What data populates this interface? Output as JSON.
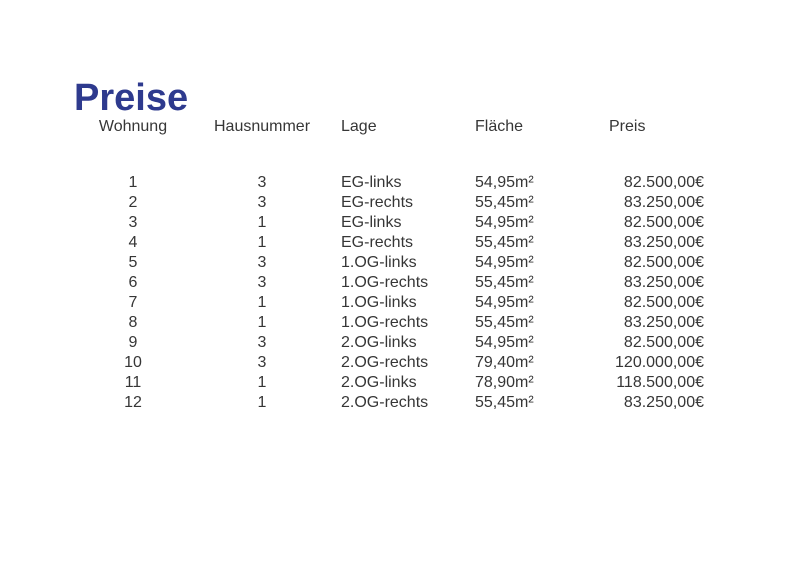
{
  "page": {
    "background": "#ffffff",
    "text_color": "#363636"
  },
  "title": {
    "text": "Preise",
    "color": "#2e3a8e"
  },
  "table": {
    "headers": [
      "Wohnung",
      "Hausnummer",
      "Lage",
      "Fläche",
      "Preis"
    ],
    "rows": [
      [
        "1",
        "3",
        "EG-links",
        "54,95m²",
        "82.500,00€"
      ],
      [
        "2",
        "3",
        "EG-rechts",
        "55,45m²",
        "83.250,00€"
      ],
      [
        "3",
        "1",
        "EG-links",
        "54,95m²",
        "82.500,00€"
      ],
      [
        "4",
        "1",
        "EG-rechts",
        "55,45m²",
        "83.250,00€"
      ],
      [
        "5",
        "3",
        "1.OG-links",
        "54,95m²",
        "82.500,00€"
      ],
      [
        "6",
        "3",
        "1.OG-rechts",
        "55,45m²",
        "83.250,00€"
      ],
      [
        "7",
        "1",
        "1.OG-links",
        "54,95m²",
        "82.500,00€"
      ],
      [
        "8",
        "1",
        "1.OG-rechts",
        "55,45m²",
        "83.250,00€"
      ],
      [
        "9",
        "3",
        "2.OG-links",
        "54,95m²",
        "82.500,00€"
      ],
      [
        "10",
        "3",
        "2.OG-rechts",
        "79,40m²",
        "120.000,00€"
      ],
      [
        "11",
        "1",
        "2.OG-links",
        "78,90m²",
        "118.500,00€"
      ],
      [
        "12",
        "1",
        "2.OG-rechts",
        "55,45m²",
        "83.250,00€"
      ]
    ]
  }
}
